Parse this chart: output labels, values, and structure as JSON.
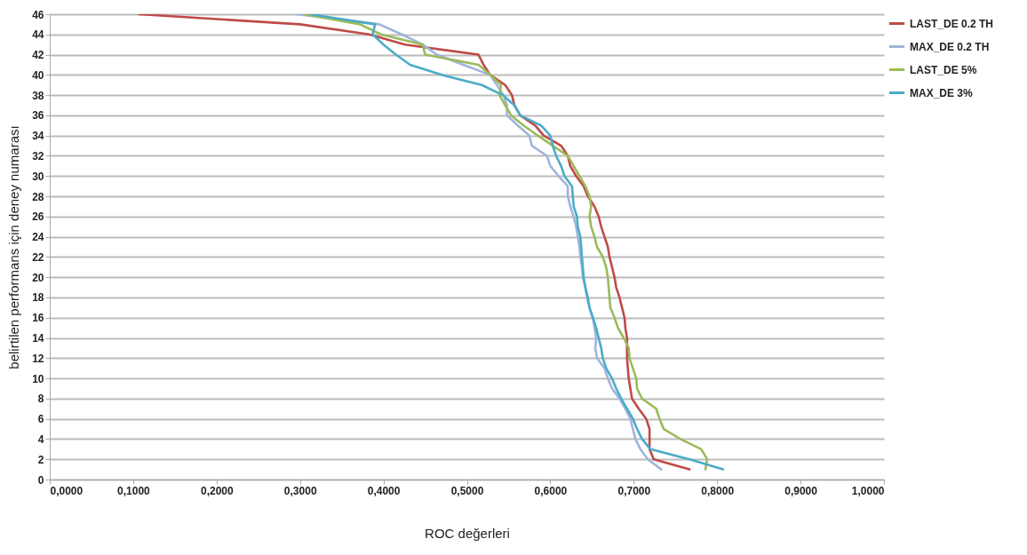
{
  "chart_data": {
    "type": "line",
    "xlabel": "ROC değerleri",
    "ylabel": "belirtilen performans için deney numarası",
    "xlim": [
      0,
      1
    ],
    "xticks": [
      {
        "value": 0,
        "label": "0,0000"
      },
      {
        "value": 0.1,
        "label": "0,1000"
      },
      {
        "value": 0.2,
        "label": "0,2000"
      },
      {
        "value": 0.3,
        "label": "0,3000"
      },
      {
        "value": 0.4,
        "label": "0,4000"
      },
      {
        "value": 0.5,
        "label": "0,5000"
      },
      {
        "value": 0.6,
        "label": "0,6000"
      },
      {
        "value": 0.7,
        "label": "0,7000"
      },
      {
        "value": 0.8,
        "label": "0,8000"
      },
      {
        "value": 0.9,
        "label": "0,9000"
      },
      {
        "value": 1,
        "label": "1,0000"
      }
    ],
    "ylim": [
      0,
      46
    ],
    "yticks": [
      0,
      2,
      4,
      6,
      8,
      10,
      12,
      14,
      16,
      18,
      20,
      22,
      24,
      26,
      28,
      30,
      32,
      34,
      36,
      38,
      40,
      42,
      44,
      46
    ],
    "grid": "y",
    "legend": "right",
    "series": [
      {
        "name": "LAST_DE 0.2 TH",
        "color": "#be4b48",
        "x": [
          0.767,
          0.724,
          0.719,
          0.719,
          0.719,
          0.715,
          0.706,
          0.698,
          0.696,
          0.694,
          0.693,
          0.692,
          0.692,
          0.692,
          0.69,
          0.689,
          0.686,
          0.683,
          0.679,
          0.677,
          0.674,
          0.671,
          0.669,
          0.665,
          0.661,
          0.658,
          0.653,
          0.645,
          0.64,
          0.631,
          0.624,
          0.621,
          0.613,
          0.592,
          0.582,
          0.564,
          0.557,
          0.554,
          0.546,
          0.528,
          0.52,
          0.514,
          0.426,
          0.383,
          0.3,
          0.107
        ],
        "values": [
          1,
          2,
          3,
          4,
          5,
          6,
          7,
          8,
          9,
          10,
          11,
          12,
          13,
          14,
          15,
          16,
          17,
          18,
          19,
          20,
          21,
          22,
          23,
          24,
          25,
          26,
          27,
          28,
          29,
          30,
          31,
          32,
          33,
          34,
          35,
          36,
          37,
          38,
          39,
          40,
          41,
          42,
          43,
          44,
          45,
          46
        ]
      },
      {
        "name": "MAX_DE 0.2 TH",
        "color": "#a0b4dc",
        "x": [
          0.733,
          0.717,
          0.708,
          0.702,
          0.699,
          0.696,
          0.69,
          0.683,
          0.674,
          0.669,
          0.665,
          0.656,
          0.654,
          0.655,
          0.653,
          0.651,
          0.647,
          0.644,
          0.642,
          0.639,
          0.638,
          0.636,
          0.635,
          0.633,
          0.631,
          0.628,
          0.624,
          0.621,
          0.621,
          0.61,
          0.6,
          0.596,
          0.578,
          0.575,
          0.561,
          0.548,
          0.548,
          0.544,
          0.536,
          0.528,
          0.496,
          0.464,
          0.447,
          0.422,
          0.395,
          0.296
        ],
        "values": [
          1,
          2,
          3,
          4,
          5,
          6,
          7,
          8,
          9,
          10,
          11,
          12,
          13,
          14,
          15,
          16,
          17,
          18,
          19,
          20,
          21,
          22,
          23,
          24,
          25,
          26,
          27,
          28,
          29,
          30,
          31,
          32,
          33,
          34,
          35,
          36,
          37,
          38,
          39,
          40,
          41,
          42,
          43,
          44,
          45,
          46
        ]
      },
      {
        "name": "LAST_DE 5%",
        "color": "#9bbb59",
        "x": [
          0.786,
          0.788,
          0.781,
          0.756,
          0.736,
          0.731,
          0.727,
          0.71,
          0.704,
          0.703,
          0.699,
          0.695,
          0.694,
          0.688,
          0.681,
          0.677,
          0.672,
          0.671,
          0.67,
          0.669,
          0.667,
          0.663,
          0.656,
          0.653,
          0.649,
          0.647,
          0.649,
          0.647,
          0.642,
          0.635,
          0.628,
          0.621,
          0.603,
          0.585,
          0.568,
          0.553,
          0.546,
          0.539,
          0.541,
          0.528,
          0.514,
          0.45,
          0.447,
          0.397,
          0.372,
          0.305
        ],
        "values": [
          1,
          2,
          3,
          4,
          5,
          6,
          7,
          8,
          9,
          10,
          11,
          12,
          13,
          14,
          15,
          16,
          17,
          18,
          19,
          20,
          21,
          22,
          23,
          24,
          25,
          26,
          27,
          28,
          29,
          30,
          31,
          32,
          33,
          34,
          35,
          36,
          37,
          38,
          39,
          40,
          41,
          42,
          43,
          44,
          45,
          46
        ]
      },
      {
        "name": "MAX_DE 3%",
        "color": "#4bacc6",
        "x": [
          0.807,
          0.767,
          0.72,
          0.71,
          0.704,
          0.699,
          0.692,
          0.685,
          0.679,
          0.674,
          0.667,
          0.663,
          0.661,
          0.658,
          0.655,
          0.651,
          0.647,
          0.645,
          0.642,
          0.64,
          0.639,
          0.638,
          0.637,
          0.636,
          0.633,
          0.632,
          0.628,
          0.627,
          0.626,
          0.617,
          0.613,
          0.607,
          0.603,
          0.6,
          0.589,
          0.564,
          0.557,
          0.543,
          0.518,
          0.47,
          0.432,
          0.415,
          0.4,
          0.387,
          0.39,
          0.312
        ],
        "values": [
          1,
          2,
          3,
          4,
          5,
          6,
          7,
          8,
          9,
          10,
          11,
          12,
          13,
          14,
          15,
          16,
          17,
          18,
          19,
          20,
          21,
          22,
          23,
          24,
          25,
          26,
          27,
          28,
          29,
          30,
          31,
          32,
          33,
          34,
          35,
          36,
          37,
          38,
          39,
          40,
          41,
          42,
          43,
          44,
          45,
          46
        ]
      }
    ]
  }
}
